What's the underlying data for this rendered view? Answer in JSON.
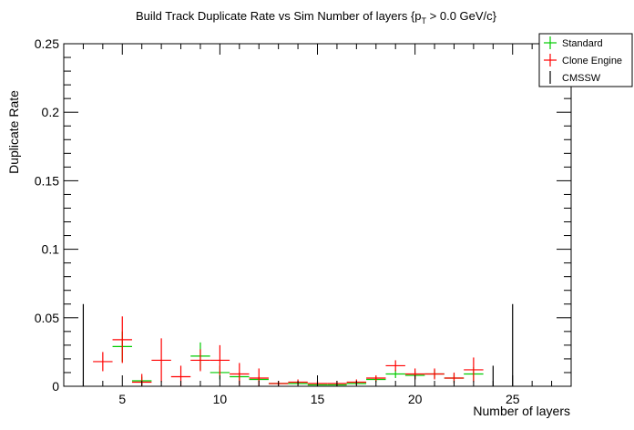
{
  "chart_data": {
    "type": "scatter",
    "title": "Build Track Duplicate Rate vs Sim Number of layers {p",
    "title_sub": "T",
    "title_tail": " > 0.0 GeV/c}",
    "xlabel": "Number of layers",
    "ylabel": "Duplicate Rate",
    "xlim": [
      2,
      28
    ],
    "ylim": [
      0,
      0.25
    ],
    "x_ticks": [
      5,
      10,
      15,
      20,
      25
    ],
    "x_tick_labels": [
      "5",
      "10",
      "15",
      "20",
      "25"
    ],
    "y_ticks": [
      0,
      0.05,
      0.1,
      0.15,
      0.2,
      0.25
    ],
    "y_tick_labels": [
      "0",
      "0.05",
      "0.1",
      "0.15",
      "0.2",
      "0.25"
    ],
    "grid": false,
    "legend_position": "top-right",
    "series": [
      {
        "name": "Standard",
        "color": "#00cc00",
        "points": [
          {
            "x": 5,
            "y": 0.029,
            "err": 0.011
          },
          {
            "x": 6,
            "y": 0.004,
            "err": 0.003
          },
          {
            "x": 9,
            "y": 0.022,
            "err": 0.01
          },
          {
            "x": 10,
            "y": 0.01,
            "err": 0.005
          },
          {
            "x": 11,
            "y": 0.007,
            "err": 0.003
          },
          {
            "x": 12,
            "y": 0.005,
            "err": 0.002
          },
          {
            "x": 13,
            "y": 0.002,
            "err": 0.001
          },
          {
            "x": 14,
            "y": 0.002,
            "err": 0.001
          },
          {
            "x": 15,
            "y": 0.001,
            "err": 0.001
          },
          {
            "x": 16,
            "y": 0.001,
            "err": 0.001
          },
          {
            "x": 17,
            "y": 0.002,
            "err": 0.001
          },
          {
            "x": 18,
            "y": 0.005,
            "err": 0.002
          },
          {
            "x": 19,
            "y": 0.009,
            "err": 0.003
          },
          {
            "x": 20,
            "y": 0.008,
            "err": 0.003
          },
          {
            "x": 21,
            "y": 0.009,
            "err": 0.003
          },
          {
            "x": 22,
            "y": 0.006,
            "err": 0.003
          },
          {
            "x": 23,
            "y": 0.009,
            "err": 0.005
          }
        ]
      },
      {
        "name": "Clone Engine",
        "color": "#ff0000",
        "points": [
          {
            "x": 4,
            "y": 0.018,
            "err": 0.007
          },
          {
            "x": 5,
            "y": 0.034,
            "err": 0.017
          },
          {
            "x": 6,
            "y": 0.003,
            "err": 0.006
          },
          {
            "x": 7,
            "y": 0.019,
            "err": 0.016
          },
          {
            "x": 8,
            "y": 0.007,
            "err": 0.008
          },
          {
            "x": 9,
            "y": 0.019,
            "err": 0.008
          },
          {
            "x": 10,
            "y": 0.019,
            "err": 0.011
          },
          {
            "x": 11,
            "y": 0.009,
            "err": 0.008
          },
          {
            "x": 12,
            "y": 0.006,
            "err": 0.007
          },
          {
            "x": 13,
            "y": 0.002,
            "err": 0.002
          },
          {
            "x": 14,
            "y": 0.003,
            "err": 0.002
          },
          {
            "x": 15,
            "y": 0.002,
            "err": 0.002
          },
          {
            "x": 16,
            "y": 0.002,
            "err": 0.002
          },
          {
            "x": 17,
            "y": 0.003,
            "err": 0.002
          },
          {
            "x": 18,
            "y": 0.006,
            "err": 0.002
          },
          {
            "x": 19,
            "y": 0.015,
            "err": 0.004
          },
          {
            "x": 20,
            "y": 0.009,
            "err": 0.004
          },
          {
            "x": 21,
            "y": 0.009,
            "err": 0.004
          },
          {
            "x": 22,
            "y": 0.006,
            "err": 0.004
          },
          {
            "x": 23,
            "y": 0.012,
            "err": 0.009
          }
        ]
      },
      {
        "name": "CMSSW",
        "color": "#000000",
        "points": [
          {
            "x": 3,
            "y": 0.0,
            "err": 0.06
          },
          {
            "x": 24,
            "y": 0.0,
            "err": 0.015
          },
          {
            "x": 25,
            "y": 0.0,
            "err": 0.06
          }
        ]
      }
    ]
  }
}
